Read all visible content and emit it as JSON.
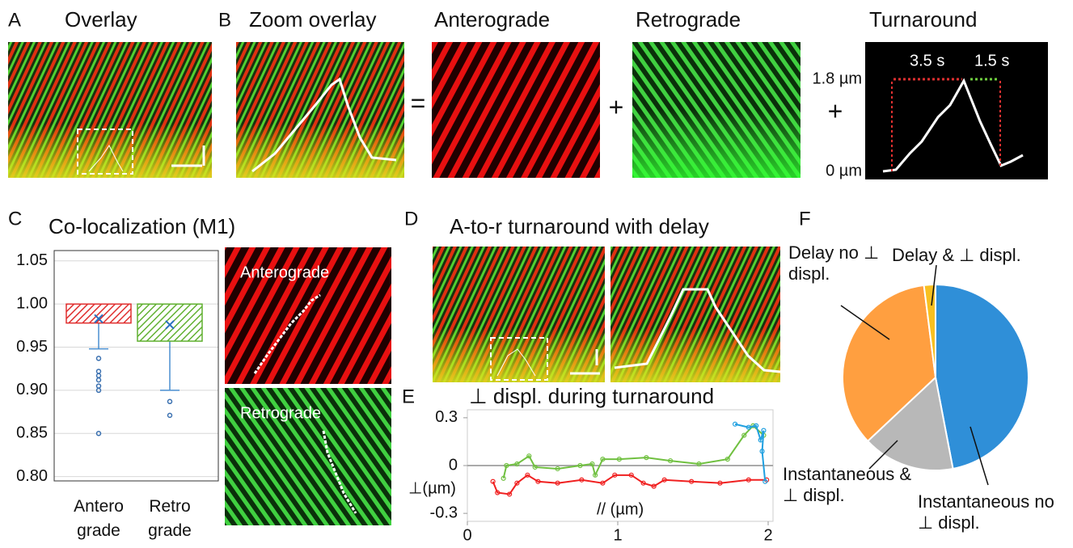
{
  "panels": {
    "A": {
      "label": "A",
      "title": "Overlay"
    },
    "B": {
      "label": "B",
      "zoom_title": "Zoom overlay",
      "antero_title": "Anterograde",
      "retro_title": "Retrograde",
      "turn_title": "Turnaround",
      "equals": "=",
      "plus": "+",
      "time1": "3.5 s",
      "time2": "1.5 s",
      "top_label": "1.8 µm",
      "bottom_label": "0 µm"
    },
    "C": {
      "label": "C",
      "antero_image_label": "Anterograde",
      "retro_image_label": "Retrograde"
    },
    "D": {
      "label": "D",
      "title": "A-to-r turnaround with delay"
    },
    "E": {
      "label": "E"
    },
    "F": {
      "label": "F"
    }
  },
  "chart_data": [
    {
      "type": "box",
      "title": "Co-localization (M1)",
      "categories": [
        "Antero grade",
        "Retro grade"
      ],
      "ylim": [
        0.795,
        1.062
      ],
      "yticks": [
        {
          "value": 0.8,
          "label": "0.80"
        },
        0.85,
        {
          "value": 0.9,
          "label": "0.90"
        },
        0.95,
        {
          "value": 1.0,
          "label": "1.00"
        },
        1.05
      ],
      "grid": true,
      "boxes": [
        {
          "color": "#e03030",
          "q1": 0.978,
          "q3": 1.0,
          "mean": 0.983,
          "whisker_low": 0.948,
          "whisker_high": 1.0,
          "outliers": [
            0.937,
            0.922,
            0.917,
            0.912,
            0.905,
            0.9,
            0.85
          ]
        },
        {
          "color": "#60b030",
          "q1": 0.957,
          "q3": 1.0,
          "mean": 0.976,
          "whisker_low": 0.9,
          "whisker_high": 1.0,
          "outliers": [
            0.887,
            0.871
          ]
        }
      ]
    },
    {
      "type": "line",
      "title": "⊥ displ. during turnaround",
      "x_label": "// (µm)",
      "y_label": "⊥(µm)",
      "xlim": [
        0,
        2
      ],
      "xticks": [
        0,
        1,
        2
      ],
      "ylim": [
        -0.35,
        0.35
      ],
      "yticks": [
        0.3,
        0,
        -0.3
      ],
      "series": [
        {
          "color": "#70c040",
          "x": [
            0.24,
            0.26,
            0.33,
            0.41,
            0.45,
            0.6,
            0.75,
            0.83,
            0.85,
            0.9,
            1.01,
            1.19,
            1.35,
            1.54,
            1.73,
            1.84,
            1.9,
            1.97
          ],
          "values": [
            -0.08,
            0,
            0.01,
            0.06,
            -0.01,
            -0.02,
            0,
            0.01,
            -0.06,
            0.04,
            0.04,
            0.05,
            0.03,
            0.01,
            0.04,
            0.19,
            0.25,
            0.19
          ]
        },
        {
          "color": "#f02020",
          "x": [
            0.17,
            0.2,
            0.28,
            0.33,
            0.4,
            0.47,
            0.6,
            0.76,
            0.9,
            0.98,
            1.09,
            1.17,
            1.24,
            1.31,
            1.49,
            1.68,
            1.87,
            1.99
          ],
          "values": [
            -0.1,
            -0.17,
            -0.18,
            -0.11,
            -0.06,
            -0.1,
            -0.11,
            -0.09,
            -0.11,
            -0.06,
            -0.06,
            -0.11,
            -0.13,
            -0.09,
            -0.1,
            -0.11,
            -0.09,
            -0.09
          ]
        },
        {
          "color": "#20a0e0",
          "x": [
            1.78,
            1.87,
            1.92,
            1.95,
            1.97,
            1.96,
            1.98
          ],
          "values": [
            0.26,
            0.24,
            0.25,
            0.16,
            0.22,
            0.09,
            -0.1
          ]
        }
      ]
    },
    {
      "type": "pie",
      "categories": [
        "Instantaneous no ⊥ displ.",
        "Instantaneous & ⊥ displ.",
        "Delay no ⊥ displ.",
        "Delay & ⊥ displ."
      ],
      "values": [
        47,
        16,
        35,
        2
      ],
      "colors": [
        "#2f8fd8",
        "#b8b8b8",
        "#ff9f40",
        "#f8c020"
      ]
    }
  ]
}
